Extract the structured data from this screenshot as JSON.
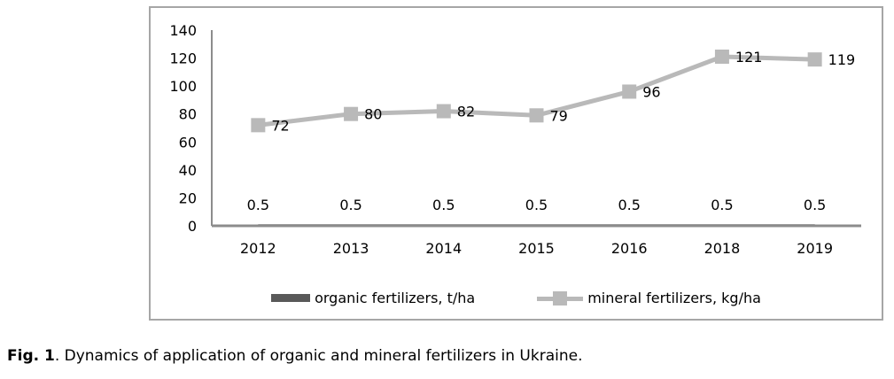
{
  "caption": {
    "fig_label": "Fig. 1",
    "text": ". Dynamics of application of organic and mineral fertilizers in Ukraine."
  },
  "chart_data": {
    "type": "line",
    "title": "",
    "xlabel": "",
    "ylabel": "",
    "categories": [
      "2012",
      "2013",
      "2014",
      "2015",
      "2016",
      "2018",
      "2019"
    ],
    "series": [
      {
        "name": "organic fertilizers, t/ha",
        "values": [
          0.5,
          0.5,
          0.5,
          0.5,
          0.5,
          0.5,
          0.5
        ],
        "color": "#595959",
        "marker": "none",
        "label_position": "above"
      },
      {
        "name": "mineral fertilizers, kg/ha",
        "values": [
          72,
          80,
          82,
          79,
          96,
          121,
          119
        ],
        "color": "#b9b9b9",
        "marker": "square",
        "label_position": "right"
      }
    ],
    "ylim": [
      0,
      140
    ],
    "ytick_step": 20,
    "ytick_labels": [
      "0",
      "20",
      "40",
      "60",
      "80",
      "100",
      "120",
      "140"
    ],
    "grid": false,
    "legend_position": "bottom"
  },
  "style": {
    "axis_color": "#8c8c8c",
    "border_color": "#a6a6a6",
    "text_color": "#000000"
  }
}
